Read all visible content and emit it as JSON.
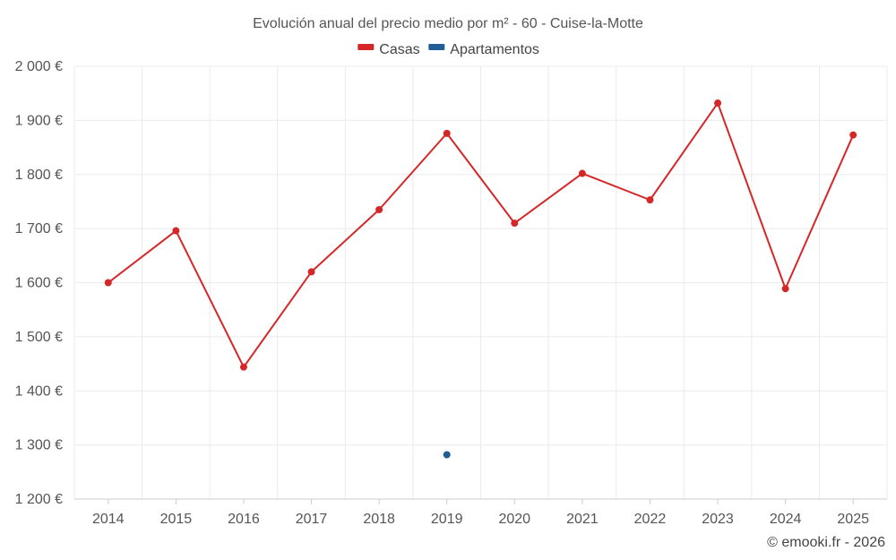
{
  "chart_data": {
    "type": "line",
    "title": "Evolución anual del precio medio por m² - 60 - Cuise-la-Motte",
    "xlabel": "",
    "ylabel": "",
    "categories": [
      "2014",
      "2015",
      "2016",
      "2017",
      "2018",
      "2019",
      "2020",
      "2021",
      "2022",
      "2023",
      "2024",
      "2025"
    ],
    "ylim": [
      1200,
      2000
    ],
    "yticks": [
      1200,
      1300,
      1400,
      1500,
      1600,
      1700,
      1800,
      1900,
      2000
    ],
    "ytick_labels": [
      "1 200 €",
      "1 300 €",
      "1 400 €",
      "1 500 €",
      "1 600 €",
      "1 700 €",
      "1 800 €",
      "1 900 €",
      "2 000 €"
    ],
    "grid": true,
    "legend_position": "top-center",
    "series": [
      {
        "name": "Casas",
        "color": "#d62728",
        "values": [
          1600,
          1696,
          1444,
          1620,
          1735,
          1876,
          1710,
          1802,
          1753,
          1932,
          1589,
          1873
        ]
      },
      {
        "name": "Apartamentos",
        "color": "#1f5f96",
        "values": [
          null,
          null,
          null,
          null,
          null,
          1282,
          null,
          null,
          null,
          null,
          null,
          null
        ]
      }
    ],
    "credit": "© emooki.fr - 2026"
  }
}
